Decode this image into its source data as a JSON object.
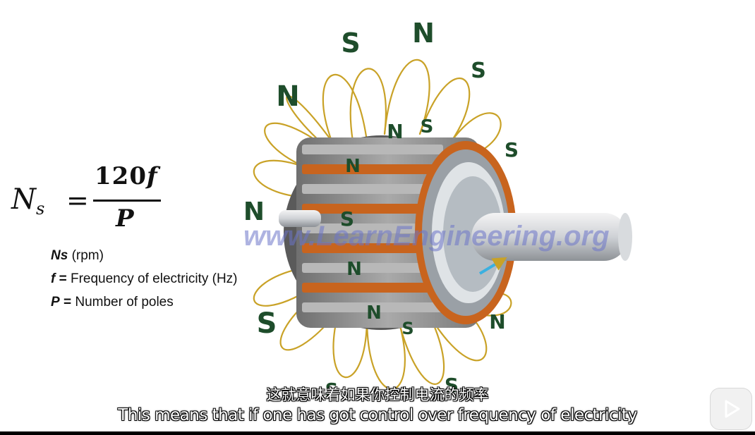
{
  "formula": {
    "lhs": "N",
    "lhs_sub": "s",
    "equals": "=",
    "numerator_number": "120",
    "numerator_var": "f",
    "denominator": "P"
  },
  "legend": [
    {
      "symbol": "Ns",
      "equals": " (rpm)",
      "text": ""
    },
    {
      "symbol": "f",
      "equals": " = ",
      "text": "Frequency of electricity (Hz)"
    },
    {
      "symbol": "P",
      "equals": " = ",
      "text": "Number of poles"
    }
  ],
  "poles": [
    "S",
    "N",
    "S",
    "N",
    "N",
    "S",
    "S",
    "N",
    "N",
    "S",
    "N",
    "S",
    "N",
    "S",
    "N",
    "S",
    "S"
  ],
  "watermark": "www.LearnEngineering.org",
  "subtitle_cn": "这就意味着如果你控制电流的频率",
  "subtitle_en": "This means that if one has got control over frequency of electricity",
  "colors": {
    "field_lines": "#c9a227",
    "pole_letters": "#1e4d2b",
    "stator": "#8a8a8a",
    "winding": "#c8641e",
    "watermark": "#6b74c9"
  },
  "icons": [
    "play-badge-icon"
  ]
}
